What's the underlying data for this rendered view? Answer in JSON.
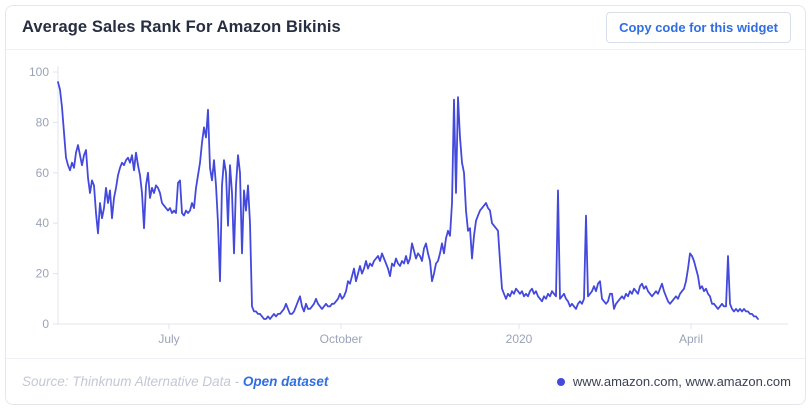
{
  "header": {
    "title": "Average Sales Rank For Amazon Bikinis",
    "copy_button_label": "Copy code for this widget"
  },
  "footer": {
    "source_prefix": "Source: Thinknum Alternative Data - ",
    "open_dataset_label": "Open dataset",
    "legend": {
      "label": "www.amazon.com, www.amazon.com"
    }
  },
  "colors": {
    "accent_blue": "#2f6ee3",
    "line_blue": "#4449dd",
    "axis_gray": "#9aa3b8",
    "title_dark": "#272e41"
  },
  "chart_data": {
    "type": "line",
    "title": "Average Sales Rank For Amazon Bikinis",
    "xlabel": "",
    "ylabel": "",
    "ylim": [
      0,
      100
    ],
    "y_ticks": [
      0,
      20,
      40,
      60,
      80,
      100
    ],
    "x_range": [
      0,
      350
    ],
    "x_tick_positions": [
      55.5,
      141.5,
      230.5,
      316.5
    ],
    "x_tick_labels": [
      "July",
      "October",
      "2020",
      "April"
    ],
    "grid": false,
    "legend_position": "bottom-right",
    "series": [
      {
        "name": "www.amazon.com, www.amazon.com",
        "color": "#4449dd",
        "values": [
          96,
          93,
          86,
          76,
          66,
          63,
          61,
          64,
          62,
          68,
          71,
          67,
          63,
          67,
          69,
          58,
          52,
          57,
          55,
          44,
          36,
          48,
          42,
          46,
          54,
          48,
          53,
          42,
          50,
          54,
          59,
          62,
          64,
          63,
          65,
          66,
          64,
          67,
          61,
          68,
          63,
          59,
          52,
          38,
          55,
          60,
          50,
          54,
          52,
          55,
          54,
          52,
          48,
          47,
          46,
          45,
          46,
          44,
          45,
          44,
          56,
          57,
          44,
          43,
          45,
          44,
          45,
          48,
          46,
          54,
          59,
          64,
          72,
          78,
          74,
          85,
          62,
          57,
          65,
          55,
          40,
          17,
          55,
          65,
          60,
          39,
          63,
          52,
          28,
          55,
          67,
          60,
          28,
          53,
          45,
          55,
          40,
          7,
          5,
          5,
          4,
          4,
          3,
          2,
          2,
          3,
          2,
          3,
          4,
          3,
          4,
          4,
          5,
          6,
          8,
          6,
          4,
          4,
          5,
          7,
          9,
          11,
          7,
          5,
          8,
          6,
          6,
          7,
          8,
          10,
          8,
          7,
          6,
          7,
          8,
          7,
          7,
          8,
          8,
          9,
          10,
          12,
          10,
          11,
          13,
          17,
          16,
          19,
          22,
          17,
          20,
          23,
          20,
          22,
          25,
          22,
          24,
          23,
          25,
          26,
          27,
          25,
          28,
          26,
          24,
          22,
          19,
          24,
          23,
          26,
          24,
          23,
          25,
          24,
          27,
          24,
          26,
          32,
          29,
          26,
          28,
          27,
          25,
          30,
          32,
          28,
          25,
          17,
          20,
          24,
          25,
          28,
          32,
          28,
          34,
          37,
          35,
          48,
          89,
          52,
          90,
          74,
          64,
          60,
          45,
          37,
          38,
          26,
          35,
          41,
          43,
          45,
          46,
          47,
          48,
          46,
          45,
          40,
          39,
          38,
          37,
          25,
          14,
          12,
          10,
          12,
          11,
          13,
          12,
          14,
          13,
          12,
          13,
          11,
          12,
          11,
          13,
          14,
          12,
          13,
          11,
          10,
          9,
          11,
          10,
          12,
          11,
          13,
          12,
          11,
          53,
          10,
          11,
          12,
          10,
          9,
          7,
          8,
          7,
          6,
          8,
          9,
          8,
          10,
          43,
          11,
          12,
          13,
          15,
          13,
          16,
          17,
          10,
          9,
          8,
          9,
          12,
          12,
          6,
          8,
          9,
          10,
          11,
          10,
          12,
          11,
          13,
          12,
          14,
          13,
          12,
          15,
          16,
          14,
          15,
          13,
          12,
          11,
          12,
          13,
          12,
          14,
          16,
          13,
          11,
          9,
          8,
          9,
          10,
          11,
          10,
          12,
          13,
          14,
          17,
          22,
          28,
          27,
          25,
          22,
          19,
          14,
          15,
          13,
          14,
          12,
          11,
          8,
          8,
          7,
          6,
          7,
          8,
          7,
          7,
          27,
          8,
          6,
          5,
          6,
          5,
          6,
          5,
          6,
          5,
          5,
          4,
          4,
          3,
          3,
          2
        ]
      }
    ]
  }
}
